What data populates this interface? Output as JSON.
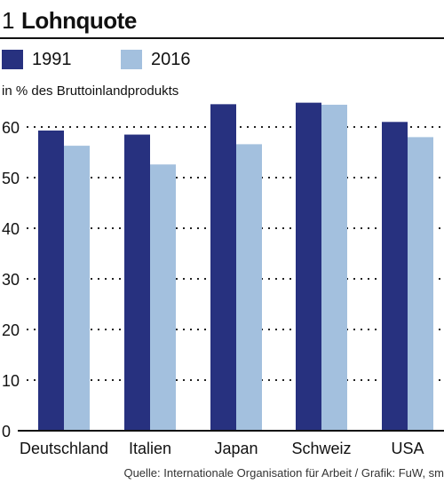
{
  "header": {
    "number": "1",
    "title": "Lohnquote"
  },
  "source": "Quelle: Internationale Organisation für Arbeit / Grafik: FuW, sm",
  "colors": {
    "series_1991": "#27317f",
    "series_2016": "#a3c0de",
    "grid": "#222222"
  },
  "chart_data": {
    "type": "bar",
    "title": "Lohnquote",
    "ylabel": "in % des Bruttoinlandprodukts",
    "categories": [
      "Deutschland",
      "Italien",
      "Japan",
      "Schweiz",
      "USA"
    ],
    "series": [
      {
        "name": "1991",
        "values": [
          59.3,
          58.5,
          64.5,
          64.8,
          61.0
        ]
      },
      {
        "name": "2016",
        "values": [
          56.3,
          52.6,
          56.6,
          64.4,
          58.0
        ]
      }
    ],
    "yticks": [
      0,
      10,
      20,
      30,
      40,
      50,
      60
    ],
    "ylim": [
      0,
      67
    ],
    "grid": true,
    "legend": "top-left"
  }
}
